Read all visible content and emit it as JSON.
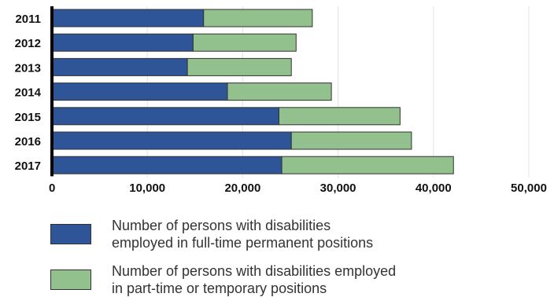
{
  "chart_data": {
    "type": "bar",
    "orientation": "horizontal",
    "stacked": true,
    "categories": [
      "2011",
      "2012",
      "2013",
      "2014",
      "2015",
      "2016",
      "2017"
    ],
    "series": [
      {
        "name": "Number of persons with disabilities employed in full-time permanent positions",
        "color": "#2e5597",
        "values": [
          15900,
          14800,
          14200,
          18400,
          23800,
          25100,
          24100
        ]
      },
      {
        "name": "Number of persons with disabilities employed in part-time or temporary positions",
        "color": "#93c18e",
        "values": [
          11400,
          10800,
          10900,
          10900,
          12700,
          12600,
          18000
        ]
      }
    ],
    "xlim": [
      0,
      50000
    ],
    "ticks": [
      "0",
      "10,000",
      "20,000",
      "30,000",
      "40,000",
      "50,000"
    ],
    "tick_values": [
      0,
      10000,
      20000,
      30000,
      40000,
      50000
    ],
    "grid": true,
    "legend_position": "bottom",
    "title": "",
    "xlabel": "",
    "ylabel": ""
  },
  "legend": {
    "items": [
      {
        "line1": "Number of persons with disabilities",
        "line2": "employed in full-time permanent positions"
      },
      {
        "line1": "Number of persons with disabilities employed",
        "line2": "in part-time or temporary positions"
      }
    ]
  }
}
